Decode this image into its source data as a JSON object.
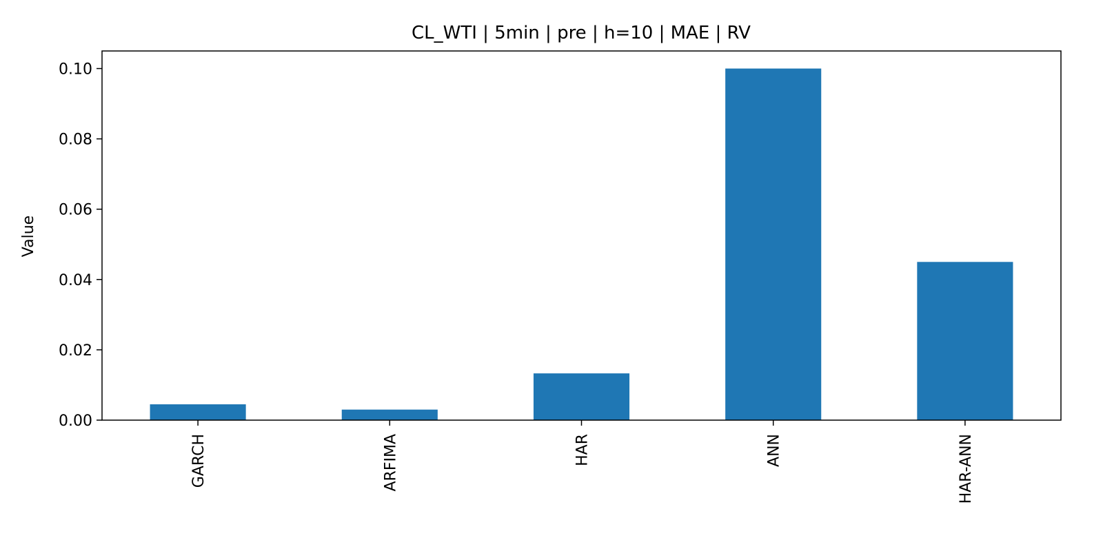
{
  "chart_data": {
    "type": "bar",
    "title": "CL_WTI | 5min | pre | h=10 | MAE | RV",
    "xlabel": "",
    "ylabel": "Value",
    "categories": [
      "GARCH",
      "ARFIMA",
      "HAR",
      "ANN",
      "HAR-ANN"
    ],
    "values": [
      0.0045,
      0.003,
      0.0133,
      0.1,
      0.045
    ],
    "ylim": [
      0,
      0.105
    ],
    "yticks": [
      0.0,
      0.02,
      0.04,
      0.06,
      0.08,
      0.1
    ],
    "ytick_labels": [
      "0.00",
      "0.02",
      "0.04",
      "0.06",
      "0.08",
      "0.10"
    ],
    "bar_color": "#1f77b4",
    "grid": false,
    "legend": false
  }
}
